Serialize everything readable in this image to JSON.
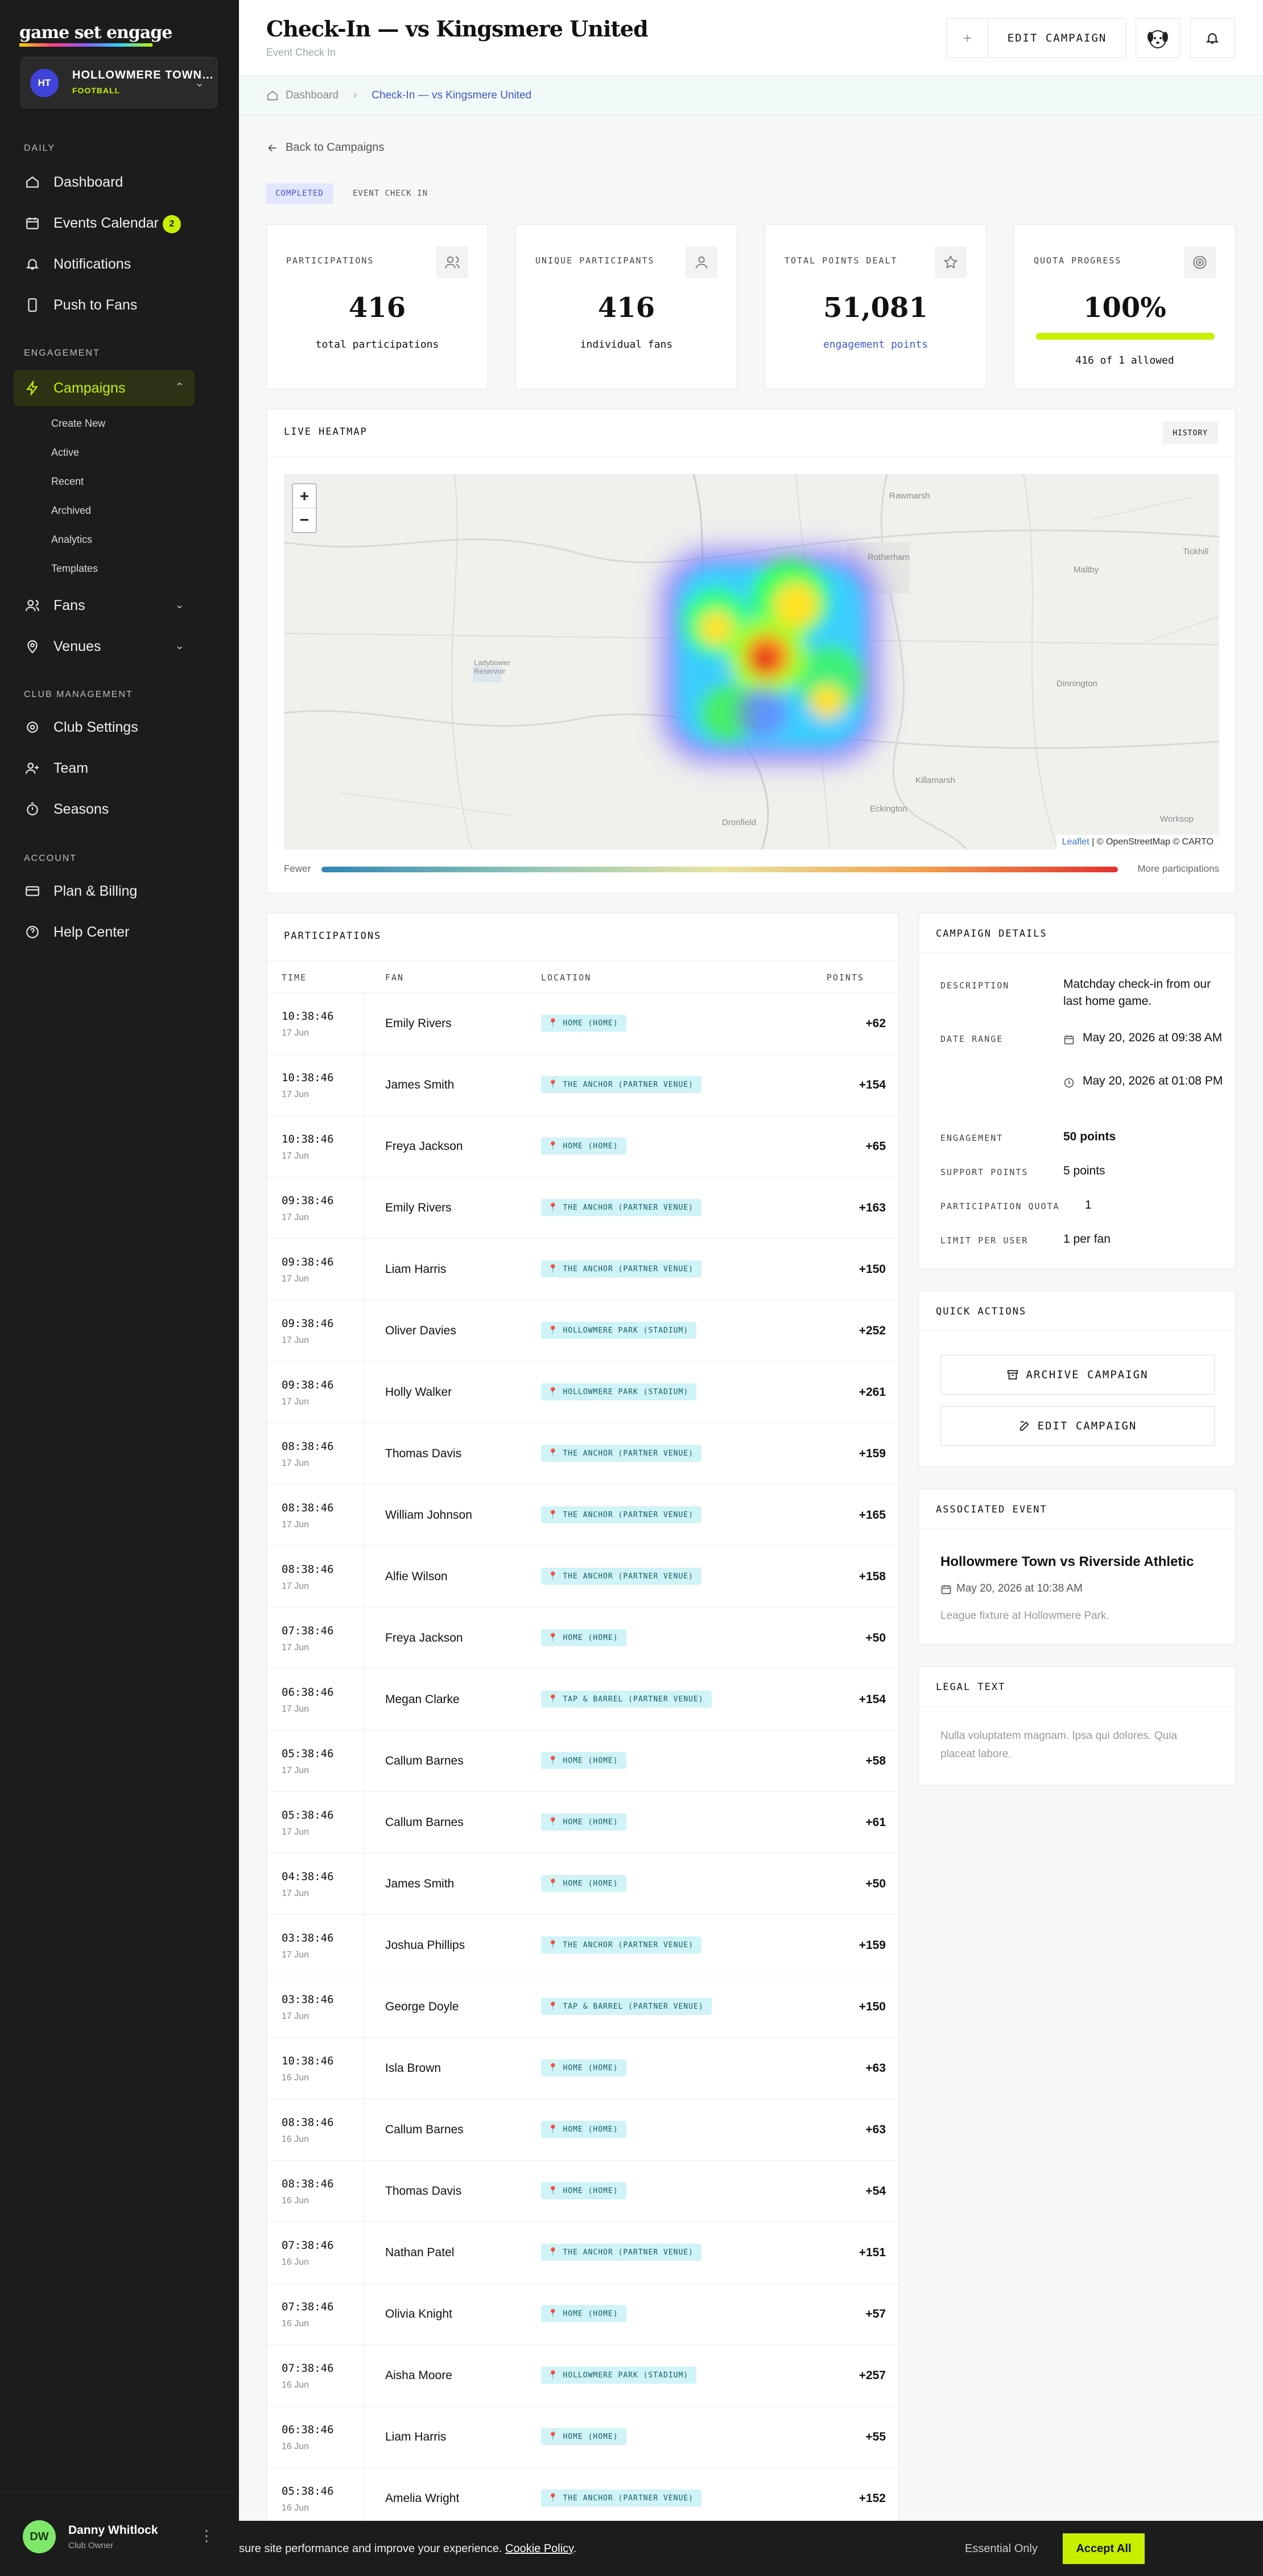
{
  "brand": {
    "logo": "game set engage"
  },
  "club": {
    "initials": "HT",
    "name": "HOLLOWMERE TOWN…",
    "sport": "FOOTBALL"
  },
  "nav": {
    "daily_label": "DAILY",
    "dashboard": "Dashboard",
    "events_calendar": "Events Calendar",
    "events_badge": "2",
    "notifications": "Notifications",
    "push": "Push to Fans",
    "engagement_label": "ENGAGEMENT",
    "campaigns": "Campaigns",
    "campaign_sub": [
      "Create New",
      "Active",
      "Recent",
      "Archived",
      "Analytics",
      "Templates"
    ],
    "fans": "Fans",
    "venues": "Venues",
    "club_mgmt_label": "CLUB MANAGEMENT",
    "club_settings": "Club Settings",
    "team": "Team",
    "seasons": "Seasons",
    "account_label": "ACCOUNT",
    "plan_billing": "Plan & Billing",
    "help_center": "Help Center"
  },
  "user": {
    "initials": "DW",
    "name": "Danny Whitlock",
    "role": "Club Owner"
  },
  "header": {
    "title": "Check-In — vs Kingsmere United",
    "subtitle": "Event Check In",
    "edit_button": "EDIT CAMPAIGN"
  },
  "breadcrumb": {
    "home": "Dashboard",
    "current": "Check-In — vs Kingsmere United"
  },
  "back_link": "Back to Campaigns",
  "tags": {
    "status": "COMPLETED",
    "type": "EVENT CHECK IN"
  },
  "stats": {
    "participations": {
      "label": "PARTICIPATIONS",
      "value": "416",
      "sub": "total participations"
    },
    "unique": {
      "label": "UNIQUE PARTICIPANTS",
      "value": "416",
      "sub": "individual fans"
    },
    "points": {
      "label": "TOTAL POINTS DEALT",
      "value": "51,081",
      "sub": "engagement points"
    },
    "quota": {
      "label": "QUOTA PROGRESS",
      "value": "100%",
      "sub": "416 of 1 allowed",
      "fraction": 1.0
    }
  },
  "heatmap": {
    "title": "LIVE HEATMAP",
    "history": "HISTORY",
    "legend_low": "Fewer",
    "legend_high": "More participations",
    "attribution_leaflet": "Leaflet",
    "attribution_rest": "| © OpenStreetMap © CARTO",
    "places": [
      "Rawmarsh",
      "Tickhill",
      "Rotherham",
      "Maltby",
      "Ladybower Reservoir",
      "Dinnington",
      "Killamarsh",
      "Dronfield",
      "Eckington",
      "Worksop"
    ]
  },
  "participations": {
    "title": "PARTICIPATIONS",
    "columns": {
      "time": "TIME",
      "fan": "FAN",
      "location": "LOCATION",
      "points": "POINTS"
    },
    "rows": [
      {
        "time": "10:38:46",
        "date": "17 Jun",
        "fan": "Emily Rivers",
        "location": "HOME (HOME)",
        "points": "+62"
      },
      {
        "time": "10:38:46",
        "date": "17 Jun",
        "fan": "James Smith",
        "location": "THE ANCHOR (PARTNER VENUE)",
        "points": "+154"
      },
      {
        "time": "10:38:46",
        "date": "17 Jun",
        "fan": "Freya Jackson",
        "location": "HOME (HOME)",
        "points": "+65"
      },
      {
        "time": "09:38:46",
        "date": "17 Jun",
        "fan": "Emily Rivers",
        "location": "THE ANCHOR (PARTNER VENUE)",
        "points": "+163"
      },
      {
        "time": "09:38:46",
        "date": "17 Jun",
        "fan": "Liam Harris",
        "location": "THE ANCHOR (PARTNER VENUE)",
        "points": "+150"
      },
      {
        "time": "09:38:46",
        "date": "17 Jun",
        "fan": "Oliver Davies",
        "location": "HOLLOWMERE PARK (STADIUM)",
        "points": "+252"
      },
      {
        "time": "09:38:46",
        "date": "17 Jun",
        "fan": "Holly Walker",
        "location": "HOLLOWMERE PARK (STADIUM)",
        "points": "+261"
      },
      {
        "time": "08:38:46",
        "date": "17 Jun",
        "fan": "Thomas Davis",
        "location": "THE ANCHOR (PARTNER VENUE)",
        "points": "+159"
      },
      {
        "time": "08:38:46",
        "date": "17 Jun",
        "fan": "William Johnson",
        "location": "THE ANCHOR (PARTNER VENUE)",
        "points": "+165"
      },
      {
        "time": "08:38:46",
        "date": "17 Jun",
        "fan": "Alfie Wilson",
        "location": "THE ANCHOR (PARTNER VENUE)",
        "points": "+158"
      },
      {
        "time": "07:38:46",
        "date": "17 Jun",
        "fan": "Freya Jackson",
        "location": "HOME (HOME)",
        "points": "+50"
      },
      {
        "time": "06:38:46",
        "date": "17 Jun",
        "fan": "Megan Clarke",
        "location": "TAP & BARREL (PARTNER VENUE)",
        "points": "+154"
      },
      {
        "time": "05:38:46",
        "date": "17 Jun",
        "fan": "Callum Barnes",
        "location": "HOME (HOME)",
        "points": "+58"
      },
      {
        "time": "05:38:46",
        "date": "17 Jun",
        "fan": "Callum Barnes",
        "location": "HOME (HOME)",
        "points": "+61"
      },
      {
        "time": "04:38:46",
        "date": "17 Jun",
        "fan": "James Smith",
        "location": "HOME (HOME)",
        "points": "+50"
      },
      {
        "time": "03:38:46",
        "date": "17 Jun",
        "fan": "Joshua Phillips",
        "location": "THE ANCHOR (PARTNER VENUE)",
        "points": "+159"
      },
      {
        "time": "03:38:46",
        "date": "17 Jun",
        "fan": "George Doyle",
        "location": "TAP & BARREL (PARTNER VENUE)",
        "points": "+150"
      },
      {
        "time": "10:38:46",
        "date": "16 Jun",
        "fan": "Isla Brown",
        "location": "HOME (HOME)",
        "points": "+63"
      },
      {
        "time": "08:38:46",
        "date": "16 Jun",
        "fan": "Callum Barnes",
        "location": "HOME (HOME)",
        "points": "+63"
      },
      {
        "time": "08:38:46",
        "date": "16 Jun",
        "fan": "Thomas Davis",
        "location": "HOME (HOME)",
        "points": "+54"
      },
      {
        "time": "07:38:46",
        "date": "16 Jun",
        "fan": "Nathan Patel",
        "location": "THE ANCHOR (PARTNER VENUE)",
        "points": "+151"
      },
      {
        "time": "07:38:46",
        "date": "16 Jun",
        "fan": "Olivia Knight",
        "location": "HOME (HOME)",
        "points": "+57"
      },
      {
        "time": "07:38:46",
        "date": "16 Jun",
        "fan": "Aisha Moore",
        "location": "HOLLOWMERE PARK (STADIUM)",
        "points": "+257"
      },
      {
        "time": "06:38:46",
        "date": "16 Jun",
        "fan": "Liam Harris",
        "location": "HOME (HOME)",
        "points": "+55"
      },
      {
        "time": "05:38:46",
        "date": "16 Jun",
        "fan": "Amelia Wright",
        "location": "THE ANCHOR (PARTNER VENUE)",
        "points": "+152"
      }
    ]
  },
  "details": {
    "title": "CAMPAIGN DETAILS",
    "description_label": "DESCRIPTION",
    "description": "Matchday check-in from our last home game.",
    "date_range_label": "DATE RANGE",
    "start": "May 20, 2026 at 09:38 AM",
    "end": "May 20, 2026 at 01:08 PM",
    "engagement_label": "ENGAGEMENT",
    "engagement": "50 points",
    "support_label": "SUPPORT POINTS",
    "support": "5 points",
    "quota_label": "PARTICIPATION QUOTA",
    "quota": "1",
    "limit_label": "LIMIT PER USER",
    "limit": "1 per fan"
  },
  "quick_actions": {
    "title": "QUICK ACTIONS",
    "archive": "ARCHIVE CAMPAIGN",
    "edit": "EDIT CAMPAIGN"
  },
  "event": {
    "title": "ASSOCIATED EVENT",
    "name": "Hollowmere Town vs Riverside Athletic",
    "date": "May 20, 2026 at 10:38 AM",
    "note": "League fixture at Hollowmere Park."
  },
  "legal": {
    "title": "LEGAL TEXT",
    "text": "Nulla voluptatem magnam. Ipsa qui dolores. Quia placeat labore."
  },
  "cookie": {
    "text": "sure site performance and improve your experience. ",
    "link": "Cookie Policy",
    "tail": ".",
    "essential": "Essential Only",
    "accept": "Accept All"
  },
  "colors": {
    "accent": "#c6f000",
    "sidebar": "#1c1c1c",
    "link": "#3f56c7"
  }
}
